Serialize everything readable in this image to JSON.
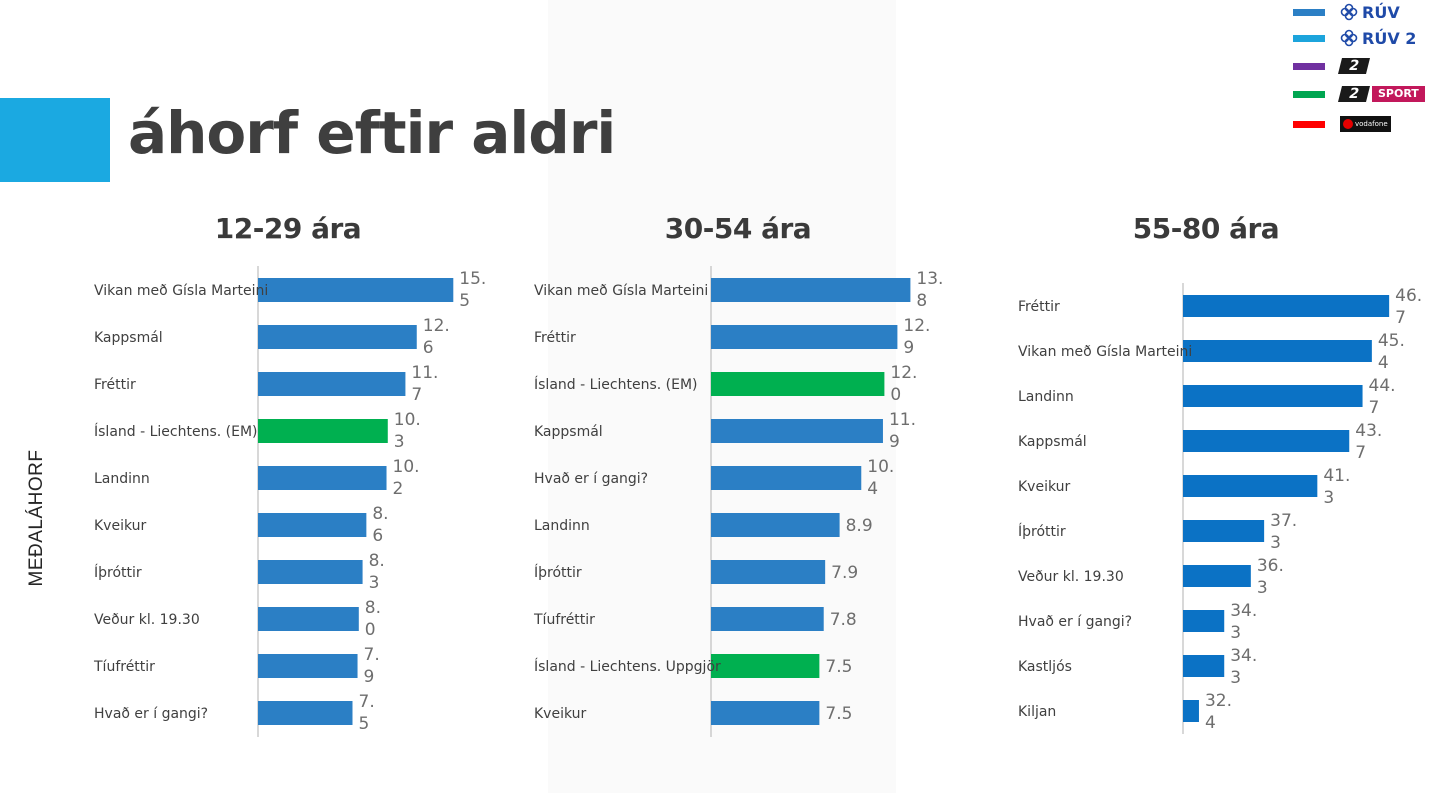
{
  "page": {
    "title": "áhorf eftir aldri",
    "y_axis_label": "MEÐALÁHORF"
  },
  "legend": {
    "items": [
      {
        "logo": "ruv-logo",
        "label": "RÚV",
        "color": "#2b7fc5"
      },
      {
        "logo": "ruv2-logo",
        "label": "RÚV 2",
        "color": "#1ca4dc"
      },
      {
        "logo": "stod2-logo",
        "label": "2",
        "color": "#7030a0"
      },
      {
        "logo": "stod2-sport-logo",
        "label": "2",
        "sublabel": "SPORT",
        "color": "#00a651"
      },
      {
        "logo": "vodafone-logo",
        "label": "vodafone",
        "color": "#ff0000"
      }
    ]
  },
  "colors": {
    "ruv": "#2b7fc5",
    "sport": "#00b050",
    "ruv_alt": "#0b72c5",
    "accent": "#1ba9e1"
  },
  "chart_data": [
    {
      "type": "bar",
      "orientation": "horizontal",
      "title": "12-29 ára",
      "categories": [
        "Vikan með Gísla Marteini",
        "Kappsmál",
        "Fréttir",
        "Ísland - Liechtens. (EM)",
        "Landinn",
        "Kveikur",
        "Íþróttir",
        "Veður kl. 19.30",
        "Tíufréttir",
        "Hvað er í gangi?"
      ],
      "values": [
        15.5,
        12.6,
        11.7,
        10.3,
        10.2,
        8.6,
        8.3,
        8.0,
        7.9,
        7.5
      ],
      "value_labels": [
        "15.5",
        "12.6",
        "11.7",
        "10.3",
        "10.2",
        "8.6",
        "8.3",
        "8.0",
        "7.9",
        "7.5"
      ],
      "colors": [
        "#2b7fc5",
        "#2b7fc5",
        "#2b7fc5",
        "#00b050",
        "#2b7fc5",
        "#2b7fc5",
        "#2b7fc5",
        "#2b7fc5",
        "#2b7fc5",
        "#2b7fc5"
      ]
    },
    {
      "type": "bar",
      "orientation": "horizontal",
      "title": "30-54 ára",
      "categories": [
        "Vikan með Gísla Marteini",
        "Fréttir",
        "Ísland - Liechtens. (EM)",
        "Kappsmál",
        "Hvað er í gangi?",
        "Landinn",
        "Íþróttir",
        "Tíufréttir",
        "Ísland - Liechtens. Uppgjör",
        "Kveikur"
      ],
      "values": [
        13.8,
        12.9,
        12.0,
        11.9,
        10.4,
        8.9,
        7.9,
        7.8,
        7.5,
        7.5
      ],
      "value_labels": [
        "13.8",
        "12.9",
        "12.0",
        "11.9",
        "10.4",
        "8.9",
        "7.9",
        "7.8",
        "7.5",
        "7.5"
      ],
      "colors": [
        "#2b7fc5",
        "#2b7fc5",
        "#00b050",
        "#2b7fc5",
        "#2b7fc5",
        "#2b7fc5",
        "#2b7fc5",
        "#2b7fc5",
        "#00b050",
        "#2b7fc5"
      ]
    },
    {
      "type": "bar",
      "orientation": "horizontal",
      "title": "55-80 ára",
      "categories": [
        "Fréttir",
        "Vikan með Gísla Marteini",
        "Landinn",
        "Kappsmál",
        "Kveikur",
        "Íþróttir",
        "Veður kl. 19.30",
        "Hvað er í gangi?",
        "Kastljós",
        "Kiljan"
      ],
      "values": [
        46.7,
        45.4,
        44.7,
        43.7,
        41.3,
        37.3,
        36.3,
        34.3,
        34.3,
        32.4
      ],
      "value_labels": [
        "46.7",
        "45.4",
        "44.7",
        "43.7",
        "41.3",
        "37.3",
        "36.3",
        "34.3",
        "34.3",
        "32.4"
      ],
      "colors": [
        "#0b72c5",
        "#0b72c5",
        "#0b72c5",
        "#0b72c5",
        "#0b72c5",
        "#0b72c5",
        "#0b72c5",
        "#0b72c5",
        "#0b72c5",
        "#0b72c5"
      ]
    }
  ]
}
